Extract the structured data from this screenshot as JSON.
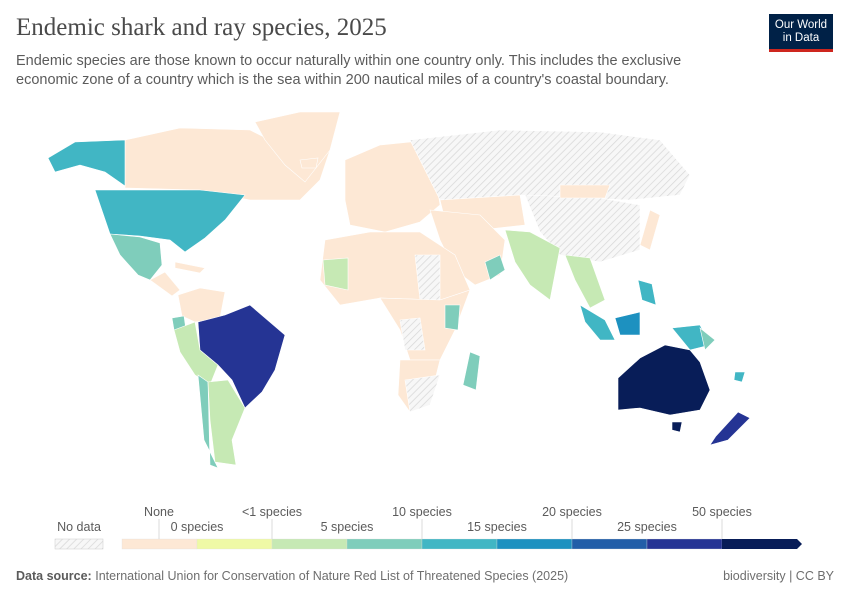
{
  "header": {
    "title": "Endemic shark and ray species, 2025",
    "subtitle": "Endemic species are those known to occur naturally within one country only. This includes the exclusive economic zone of a country which is the sea within 200 nautical miles of a country's coastal boundary.",
    "logo": "Our World in Data"
  },
  "legend": {
    "no_data_label": "No data",
    "no_data_pattern": "hatched-grey",
    "bins": [
      {
        "color": "#fde8d5"
      },
      {
        "color": "#eff9a6"
      },
      {
        "color": "#c6e9b4"
      },
      {
        "color": "#7fcdbb"
      },
      {
        "color": "#41b6c4"
      },
      {
        "color": "#1d91c0"
      },
      {
        "color": "#225ea8"
      },
      {
        "color": "#253494"
      },
      {
        "color": "#081d58"
      }
    ],
    "labels_top": [
      "None",
      "<1 species",
      "10 species",
      "20 species",
      "50 species"
    ],
    "labels_bottom": [
      "0 species",
      "5 species",
      "15 species",
      "25 species"
    ]
  },
  "footer": {
    "source_label": "Data source:",
    "source": "International Union for Conservation of Nature Red List of Threatened Species (2025)",
    "topic": "biodiversity | CC BY"
  }
}
